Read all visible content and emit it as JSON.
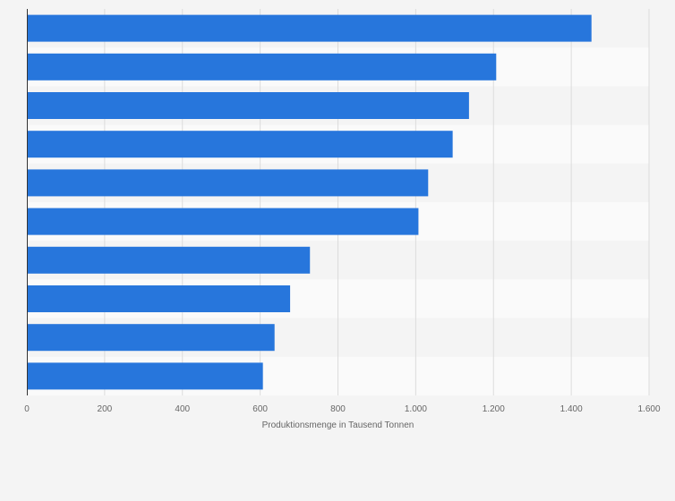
{
  "chart_data": {
    "type": "bar",
    "orientation": "horizontal",
    "categories": [
      "",
      "",
      "",
      "",
      "",
      "",
      "",
      "",
      "",
      ""
    ],
    "series": [
      {
        "values": [
          1452,
          1207,
          1137,
          1095,
          1032,
          1007,
          728,
          677,
          637,
          607
        ],
        "color": "#2776dc"
      }
    ],
    "title": "",
    "xlabel": "Produktionsmenge in Tausend Tonnen",
    "ylabel": "",
    "xlim": [
      0,
      1600
    ],
    "x_ticks": [
      0,
      200,
      400,
      600,
      800,
      1000,
      1200,
      1400,
      1600
    ],
    "x_tick_labels": [
      "0",
      "200",
      "400",
      "600",
      "800",
      "1.000",
      "1.200",
      "1.400",
      "1.600"
    ],
    "grid": true,
    "legend": "none",
    "colors": {
      "bar": "#2776dc",
      "band_light": "#fafafa",
      "band_dark": "#f4f4f4",
      "grid": "#dcdcdc",
      "axis": "#333333",
      "text": "#666666"
    }
  }
}
